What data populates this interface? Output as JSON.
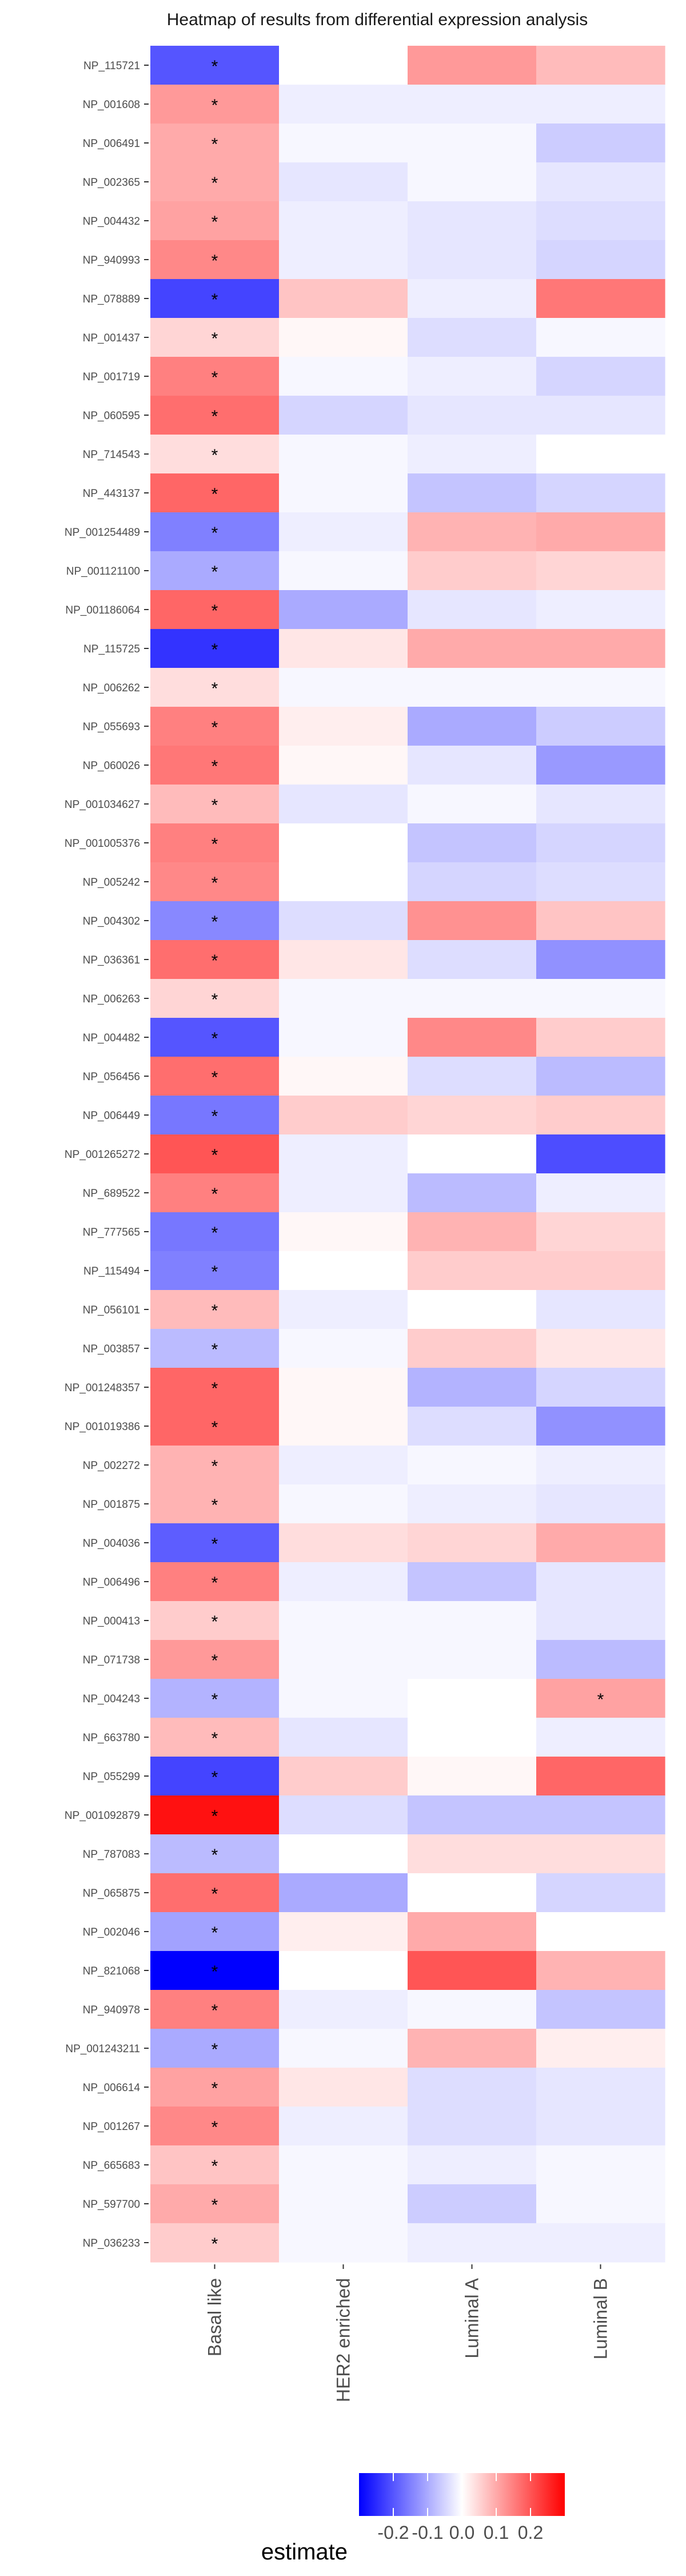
{
  "chart_data": {
    "type": "heatmap",
    "title": "Heatmap of results from differential expression analysis",
    "xlabel": "",
    "ylabel": "",
    "categories": [
      "Basal like",
      "HER2 enriched",
      "Luminal A",
      "Luminal B"
    ],
    "rows": [
      "NP_115721",
      "NP_001608",
      "NP_006491",
      "NP_002365",
      "NP_004432",
      "NP_940993",
      "NP_078889",
      "NP_001437",
      "NP_001719",
      "NP_060595",
      "NP_714543",
      "NP_443137",
      "NP_001254489",
      "NP_001121100",
      "NP_001186064",
      "NP_115725",
      "NP_006262",
      "NP_055693",
      "NP_060026",
      "NP_001034627",
      "NP_001005376",
      "NP_005242",
      "NP_004302",
      "NP_036361",
      "NP_006263",
      "NP_004482",
      "NP_056456",
      "NP_006449",
      "NP_001265272",
      "NP_689522",
      "NP_777565",
      "NP_115494",
      "NP_056101",
      "NP_003857",
      "NP_001248357",
      "NP_001019386",
      "NP_002272",
      "NP_001875",
      "NP_004036",
      "NP_006496",
      "NP_000413",
      "NP_071738",
      "NP_004243",
      "NP_663780",
      "NP_055299",
      "NP_001092879",
      "NP_787083",
      "NP_065875",
      "NP_002046",
      "NP_821068",
      "NP_940978",
      "NP_001243211",
      "NP_006614",
      "NP_001267",
      "NP_665683",
      "NP_597700",
      "NP_036233"
    ],
    "values": [
      [
        -0.2,
        0.0,
        0.12,
        0.08
      ],
      [
        0.12,
        -0.02,
        -0.02,
        -0.02
      ],
      [
        0.1,
        -0.01,
        -0.01,
        -0.06
      ],
      [
        0.1,
        -0.03,
        -0.01,
        -0.03
      ],
      [
        0.11,
        -0.02,
        -0.03,
        -0.04
      ],
      [
        0.14,
        -0.02,
        -0.03,
        -0.05
      ],
      [
        -0.22,
        0.07,
        -0.02,
        0.16
      ],
      [
        0.05,
        0.01,
        -0.04,
        -0.01
      ],
      [
        0.15,
        -0.01,
        -0.02,
        -0.05
      ],
      [
        0.17,
        -0.05,
        -0.03,
        -0.03
      ],
      [
        0.04,
        -0.01,
        -0.02,
        0.0
      ],
      [
        0.18,
        -0.01,
        -0.07,
        -0.05
      ],
      [
        -0.15,
        -0.02,
        0.09,
        0.1
      ],
      [
        -0.1,
        -0.01,
        0.06,
        0.05
      ],
      [
        0.18,
        -0.1,
        -0.03,
        -0.02
      ],
      [
        -0.24,
        0.03,
        0.1,
        0.1
      ],
      [
        0.04,
        -0.01,
        -0.01,
        -0.01
      ],
      [
        0.15,
        0.02,
        -0.1,
        -0.06
      ],
      [
        0.16,
        0.01,
        -0.03,
        -0.12
      ],
      [
        0.08,
        -0.03,
        -0.01,
        -0.03
      ],
      [
        0.15,
        0.0,
        -0.07,
        -0.05
      ],
      [
        0.14,
        0.0,
        -0.05,
        -0.04
      ],
      [
        -0.14,
        -0.04,
        0.13,
        0.07
      ],
      [
        0.17,
        0.03,
        -0.04,
        -0.13
      ],
      [
        0.05,
        -0.01,
        -0.01,
        -0.01
      ],
      [
        -0.2,
        -0.01,
        0.14,
        0.06
      ],
      [
        0.17,
        0.01,
        -0.04,
        -0.08
      ],
      [
        -0.16,
        0.06,
        0.05,
        0.06
      ],
      [
        0.2,
        -0.02,
        0.0,
        -0.21
      ],
      [
        0.15,
        -0.02,
        -0.08,
        -0.02
      ],
      [
        -0.16,
        0.01,
        0.09,
        0.05
      ],
      [
        -0.15,
        0.0,
        0.06,
        0.06
      ],
      [
        0.08,
        -0.02,
        0.0,
        -0.03
      ],
      [
        -0.08,
        -0.01,
        0.06,
        0.03
      ],
      [
        0.18,
        0.01,
        -0.09,
        -0.05
      ],
      [
        0.18,
        0.01,
        -0.04,
        -0.13
      ],
      [
        0.09,
        -0.02,
        -0.01,
        -0.02
      ],
      [
        0.09,
        -0.01,
        -0.02,
        -0.03
      ],
      [
        -0.19,
        0.04,
        0.05,
        0.1
      ],
      [
        0.15,
        -0.02,
        -0.07,
        -0.03
      ],
      [
        0.06,
        -0.01,
        -0.01,
        -0.03
      ],
      [
        0.12,
        -0.01,
        -0.01,
        -0.08
      ],
      [
        -0.09,
        -0.01,
        0.0,
        0.11
      ],
      [
        0.08,
        -0.03,
        0.0,
        -0.02
      ],
      [
        -0.22,
        0.06,
        0.01,
        0.18
      ],
      [
        0.28,
        -0.04,
        -0.07,
        -0.07
      ],
      [
        -0.08,
        0.0,
        0.04,
        0.04
      ],
      [
        0.17,
        -0.1,
        0.0,
        -0.05
      ],
      [
        -0.11,
        0.02,
        0.1,
        0.0
      ],
      [
        -0.3,
        0.0,
        0.2,
        0.09
      ],
      [
        0.15,
        -0.02,
        -0.01,
        -0.07
      ],
      [
        -0.1,
        -0.01,
        0.09,
        0.02
      ],
      [
        0.11,
        0.03,
        -0.04,
        -0.03
      ],
      [
        0.14,
        -0.02,
        -0.04,
        -0.03
      ],
      [
        0.07,
        -0.01,
        -0.02,
        -0.01
      ],
      [
        0.1,
        -0.01,
        -0.06,
        -0.01
      ],
      [
        0.06,
        -0.01,
        -0.02,
        -0.02
      ]
    ],
    "significance_marker": "*",
    "significant": [
      [
        true,
        false,
        false,
        false
      ],
      [
        true,
        false,
        false,
        false
      ],
      [
        true,
        false,
        false,
        false
      ],
      [
        true,
        false,
        false,
        false
      ],
      [
        true,
        false,
        false,
        false
      ],
      [
        true,
        false,
        false,
        false
      ],
      [
        true,
        false,
        false,
        false
      ],
      [
        true,
        false,
        false,
        false
      ],
      [
        true,
        false,
        false,
        false
      ],
      [
        true,
        false,
        false,
        false
      ],
      [
        true,
        false,
        false,
        false
      ],
      [
        true,
        false,
        false,
        false
      ],
      [
        true,
        false,
        false,
        false
      ],
      [
        true,
        false,
        false,
        false
      ],
      [
        true,
        false,
        false,
        false
      ],
      [
        true,
        false,
        false,
        false
      ],
      [
        true,
        false,
        false,
        false
      ],
      [
        true,
        false,
        false,
        false
      ],
      [
        true,
        false,
        false,
        false
      ],
      [
        true,
        false,
        false,
        false
      ],
      [
        true,
        false,
        false,
        false
      ],
      [
        true,
        false,
        false,
        false
      ],
      [
        true,
        false,
        false,
        false
      ],
      [
        true,
        false,
        false,
        false
      ],
      [
        true,
        false,
        false,
        false
      ],
      [
        true,
        false,
        false,
        false
      ],
      [
        true,
        false,
        false,
        false
      ],
      [
        true,
        false,
        false,
        false
      ],
      [
        true,
        false,
        false,
        false
      ],
      [
        true,
        false,
        false,
        false
      ],
      [
        true,
        false,
        false,
        false
      ],
      [
        true,
        false,
        false,
        false
      ],
      [
        true,
        false,
        false,
        false
      ],
      [
        true,
        false,
        false,
        false
      ],
      [
        true,
        false,
        false,
        false
      ],
      [
        true,
        false,
        false,
        false
      ],
      [
        true,
        false,
        false,
        false
      ],
      [
        true,
        false,
        false,
        false
      ],
      [
        true,
        false,
        false,
        false
      ],
      [
        true,
        false,
        false,
        false
      ],
      [
        true,
        false,
        false,
        false
      ],
      [
        true,
        false,
        false,
        false
      ],
      [
        true,
        false,
        false,
        true
      ],
      [
        true,
        false,
        false,
        false
      ],
      [
        true,
        false,
        false,
        false
      ],
      [
        true,
        false,
        false,
        false
      ],
      [
        true,
        false,
        false,
        false
      ],
      [
        true,
        false,
        false,
        false
      ],
      [
        true,
        false,
        false,
        false
      ],
      [
        true,
        false,
        false,
        false
      ],
      [
        true,
        false,
        false,
        false
      ],
      [
        true,
        false,
        false,
        false
      ],
      [
        true,
        false,
        false,
        false
      ],
      [
        true,
        false,
        false,
        false
      ],
      [
        true,
        false,
        false,
        false
      ],
      [
        true,
        false,
        false,
        false
      ],
      [
        true,
        false,
        false,
        false
      ]
    ],
    "legend": {
      "title": "estimate",
      "position": "bottom",
      "ticks": [
        -0.2,
        -0.1,
        0.0,
        0.1,
        0.2
      ],
      "tick_labels": [
        "-0.2",
        "-0.1",
        "0.0",
        "0.1",
        "0.2"
      ],
      "limits": [
        -0.3,
        0.3
      ]
    },
    "colors": {
      "low": "#0000ff",
      "mid": "#ffffff",
      "high": "#ff0000"
    },
    "grid": false
  }
}
